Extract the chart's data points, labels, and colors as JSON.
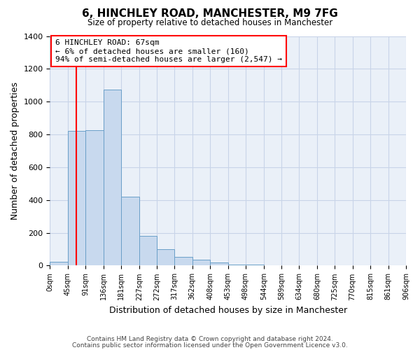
{
  "title": "6, HINCHLEY ROAD, MANCHESTER, M9 7FG",
  "subtitle": "Size of property relative to detached houses in Manchester",
  "xlabel": "Distribution of detached houses by size in Manchester",
  "ylabel": "Number of detached properties",
  "bar_color": "#c8d9ee",
  "bar_edge_color": "#6a9fc8",
  "background_color": "#eaf0f8",
  "grid_color": "#c8d4e8",
  "red_line_x": 67,
  "annotation_title": "6 HINCHLEY ROAD: 67sqm",
  "annotation_line1": "← 6% of detached houses are smaller (160)",
  "annotation_line2": "94% of semi-detached houses are larger (2,547) →",
  "bins": [
    0,
    45,
    91,
    136,
    181,
    227,
    272,
    317,
    362,
    408,
    453,
    498,
    544,
    589,
    634,
    680,
    725,
    770,
    815,
    861,
    906
  ],
  "counts": [
    25,
    820,
    825,
    1075,
    420,
    180,
    100,
    55,
    35,
    20,
    5,
    5,
    0,
    0,
    0,
    0,
    0,
    0,
    0,
    0
  ],
  "ylim": [
    0,
    1400
  ],
  "yticks": [
    0,
    200,
    400,
    600,
    800,
    1000,
    1200,
    1400
  ],
  "footer1": "Contains HM Land Registry data © Crown copyright and database right 2024.",
  "footer2": "Contains public sector information licensed under the Open Government Licence v3.0."
}
